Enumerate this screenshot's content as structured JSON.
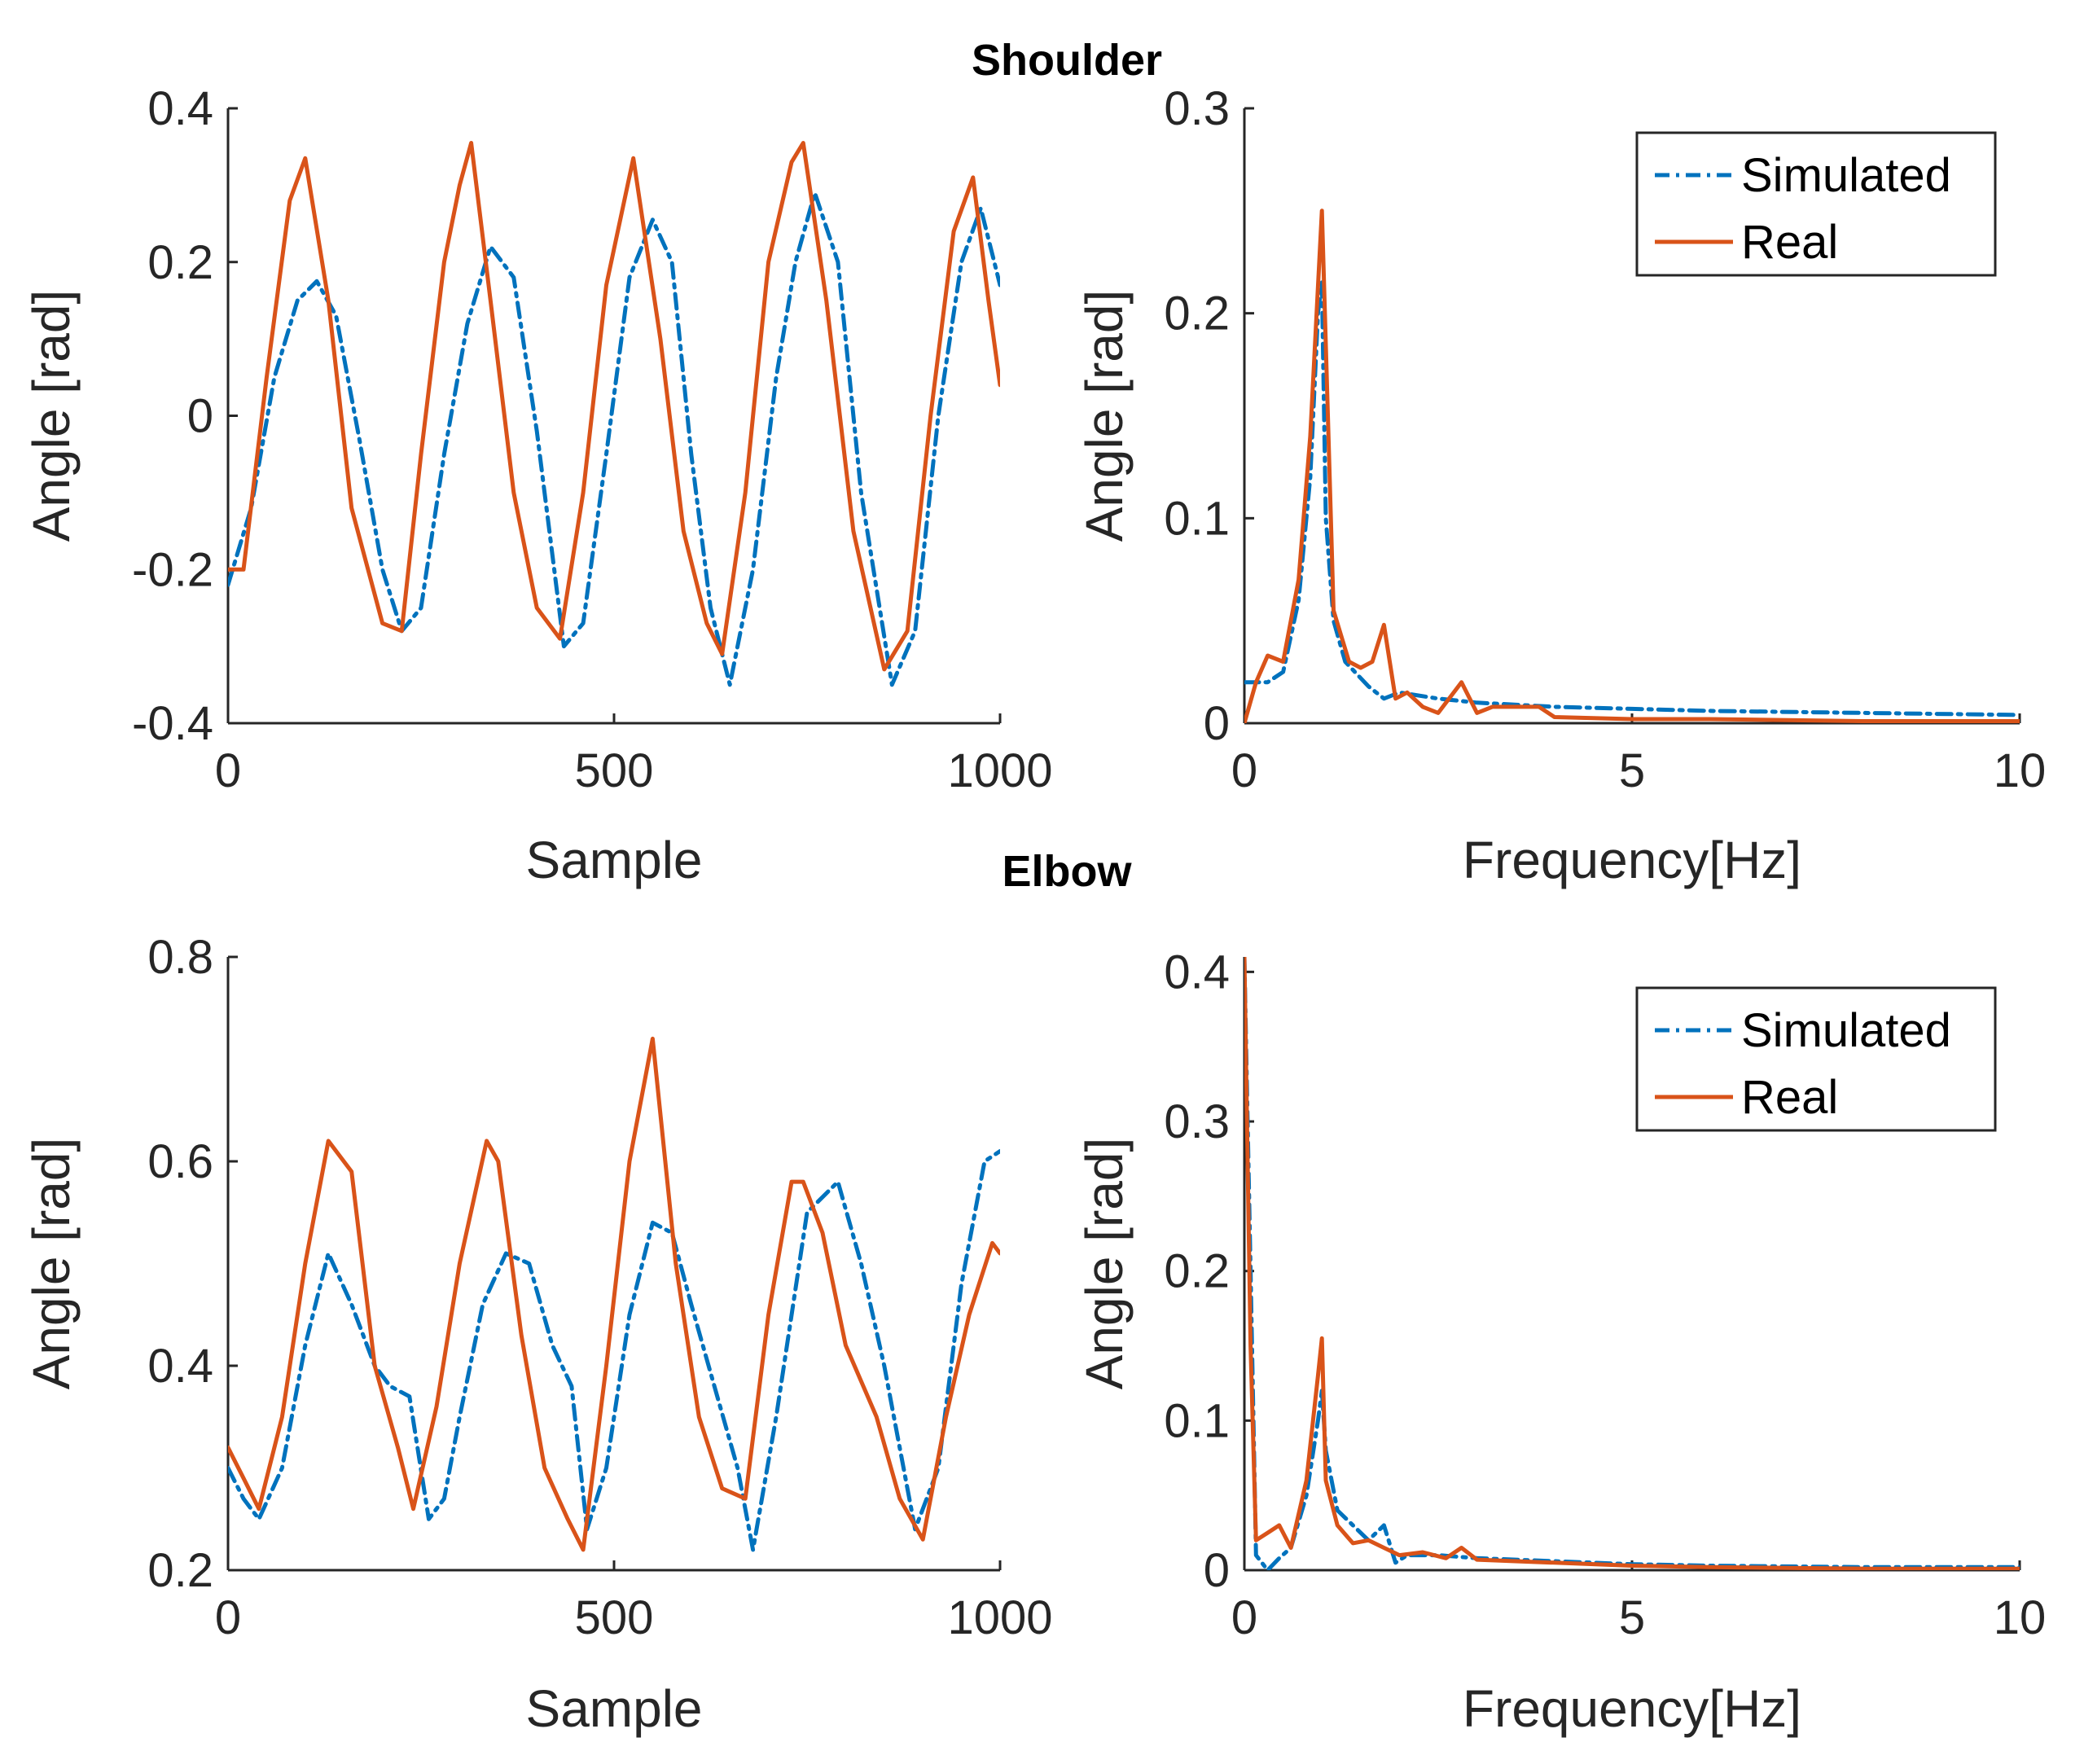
{
  "sections": [
    {
      "title": "Shoulder"
    },
    {
      "title": "Elbow"
    }
  ],
  "legend": {
    "simulated": "Simulated",
    "real": "Real"
  },
  "colors": {
    "simulated": "#0072BD",
    "real": "#D95319",
    "axis": "#262626"
  },
  "chart_data": [
    {
      "id": "shoulder-time",
      "type": "line",
      "xlabel": "Sample",
      "ylabel": "Angle [rad]",
      "xlim": [
        0,
        1000
      ],
      "ylim": [
        -0.4,
        0.4
      ],
      "xticks": [
        0,
        500,
        1000
      ],
      "yticks": [
        -0.4,
        -0.2,
        0,
        0.2,
        0.4
      ],
      "xtick_labels": [
        "0",
        "500",
        "1000"
      ],
      "ytick_labels": [
        "-0.4",
        "-0.2",
        "0",
        "0.2",
        "0.4"
      ],
      "series": [
        {
          "name": "Simulated",
          "style": "dashdot",
          "x": [
            0,
            30,
            60,
            90,
            115,
            140,
            170,
            200,
            225,
            250,
            280,
            310,
            340,
            370,
            400,
            435,
            460,
            490,
            520,
            550,
            575,
            600,
            625,
            650,
            680,
            710,
            735,
            760,
            790,
            820,
            860,
            890,
            920,
            950,
            975,
            1000
          ],
          "y": [
            -0.22,
            -0.12,
            0.05,
            0.15,
            0.175,
            0.13,
            -0.03,
            -0.2,
            -0.28,
            -0.25,
            -0.05,
            0.12,
            0.22,
            0.18,
            -0.02,
            -0.3,
            -0.27,
            -0.05,
            0.18,
            0.255,
            0.2,
            -0.05,
            -0.25,
            -0.35,
            -0.2,
            0.05,
            0.2,
            0.29,
            0.2,
            -0.1,
            -0.35,
            -0.28,
            0.0,
            0.2,
            0.27,
            0.17
          ]
        },
        {
          "name": "Real",
          "style": "solid",
          "x": [
            0,
            20,
            50,
            80,
            100,
            130,
            160,
            200,
            225,
            250,
            280,
            300,
            315,
            340,
            370,
            400,
            430,
            460,
            490,
            525,
            560,
            590,
            620,
            640,
            670,
            700,
            730,
            745,
            775,
            810,
            850,
            880,
            910,
            940,
            965,
            985,
            1000
          ],
          "y": [
            -0.2,
            -0.2,
            0.05,
            0.28,
            0.335,
            0.15,
            -0.12,
            -0.27,
            -0.28,
            -0.05,
            0.2,
            0.3,
            0.355,
            0.15,
            -0.1,
            -0.25,
            -0.29,
            -0.1,
            0.17,
            0.335,
            0.1,
            -0.15,
            -0.27,
            -0.31,
            -0.1,
            0.2,
            0.33,
            0.355,
            0.15,
            -0.15,
            -0.33,
            -0.28,
            0.0,
            0.24,
            0.31,
            0.15,
            0.04
          ]
        }
      ]
    },
    {
      "id": "shoulder-freq",
      "type": "line",
      "xlabel": "Frequency[Hz]",
      "ylabel": "Angle [rad]",
      "xlim": [
        0,
        10
      ],
      "ylim": [
        0,
        0.3
      ],
      "xticks": [
        0,
        5,
        10
      ],
      "yticks": [
        0,
        0.1,
        0.2,
        0.3
      ],
      "xtick_labels": [
        "0",
        "5",
        "10"
      ],
      "ytick_labels": [
        "0",
        "0.1",
        "0.2",
        "0.3"
      ],
      "legend_position": "top-right",
      "series": [
        {
          "name": "Simulated",
          "style": "dashdot",
          "x": [
            0,
            0.3,
            0.5,
            0.7,
            0.85,
            0.95,
            1.0,
            1.05,
            1.15,
            1.3,
            1.6,
            1.8,
            2.0,
            2.5,
            3.0,
            4.0,
            5.0,
            6.0,
            8.0,
            10.0
          ],
          "y": [
            0.02,
            0.02,
            0.025,
            0.06,
            0.12,
            0.2,
            0.215,
            0.1,
            0.05,
            0.03,
            0.018,
            0.012,
            0.015,
            0.012,
            0.01,
            0.008,
            0.007,
            0.006,
            0.005,
            0.004
          ]
        },
        {
          "name": "Real",
          "style": "solid",
          "x": [
            0,
            0.15,
            0.3,
            0.5,
            0.7,
            0.85,
            1.0,
            1.15,
            1.35,
            1.5,
            1.65,
            1.8,
            1.95,
            2.1,
            2.3,
            2.5,
            2.8,
            3.0,
            3.2,
            3.5,
            3.8,
            4.0,
            5.0,
            6.0,
            8.0,
            10.0
          ],
          "y": [
            0.0,
            0.02,
            0.033,
            0.03,
            0.07,
            0.14,
            0.25,
            0.055,
            0.03,
            0.027,
            0.03,
            0.048,
            0.012,
            0.015,
            0.008,
            0.005,
            0.02,
            0.005,
            0.008,
            0.008,
            0.008,
            0.003,
            0.002,
            0.002,
            0.001,
            0.001
          ]
        }
      ]
    },
    {
      "id": "elbow-time",
      "type": "line",
      "xlabel": "Sample",
      "ylabel": "Angle [rad]",
      "xlim": [
        0,
        1000
      ],
      "ylim": [
        0.2,
        0.8
      ],
      "xticks": [
        0,
        500,
        1000
      ],
      "yticks": [
        0.2,
        0.4,
        0.6,
        0.8
      ],
      "xtick_labels": [
        "0",
        "500",
        "1000"
      ],
      "ytick_labels": [
        "0.2",
        "0.4",
        "0.6",
        "0.8"
      ],
      "series": [
        {
          "name": "Simulated",
          "style": "dashdot",
          "x": [
            0,
            20,
            40,
            70,
            100,
            130,
            160,
            190,
            210,
            235,
            260,
            280,
            300,
            330,
            360,
            390,
            420,
            445,
            465,
            490,
            520,
            550,
            575,
            600,
            630,
            660,
            680,
            710,
            750,
            790,
            820,
            850,
            890,
            920,
            950,
            980,
            1000
          ],
          "y": [
            0.3,
            0.27,
            0.25,
            0.3,
            0.42,
            0.51,
            0.46,
            0.4,
            0.38,
            0.37,
            0.25,
            0.27,
            0.35,
            0.46,
            0.51,
            0.5,
            0.42,
            0.38,
            0.24,
            0.3,
            0.45,
            0.54,
            0.53,
            0.46,
            0.38,
            0.3,
            0.22,
            0.35,
            0.55,
            0.58,
            0.5,
            0.4,
            0.24,
            0.3,
            0.48,
            0.6,
            0.61
          ]
        },
        {
          "name": "Real",
          "style": "solid",
          "x": [
            0,
            20,
            40,
            70,
            100,
            130,
            160,
            190,
            220,
            240,
            270,
            300,
            335,
            350,
            380,
            410,
            440,
            460,
            490,
            520,
            550,
            580,
            610,
            640,
            670,
            700,
            730,
            745,
            770,
            800,
            840,
            870,
            900,
            930,
            960,
            990,
            1000
          ],
          "y": [
            0.32,
            0.29,
            0.26,
            0.35,
            0.5,
            0.62,
            0.59,
            0.4,
            0.32,
            0.26,
            0.36,
            0.5,
            0.62,
            0.6,
            0.43,
            0.3,
            0.25,
            0.22,
            0.4,
            0.6,
            0.72,
            0.5,
            0.35,
            0.28,
            0.27,
            0.45,
            0.58,
            0.58,
            0.53,
            0.42,
            0.35,
            0.27,
            0.23,
            0.35,
            0.45,
            0.52,
            0.51
          ]
        }
      ]
    },
    {
      "id": "elbow-freq",
      "type": "line",
      "xlabel": "Frequency[Hz]",
      "ylabel": "Angle [rad]",
      "xlim": [
        0,
        10
      ],
      "ylim": [
        0,
        0.41
      ],
      "xticks": [
        0,
        5,
        10
      ],
      "yticks": [
        0,
        0.1,
        0.2,
        0.3,
        0.4
      ],
      "xtick_labels": [
        "0",
        "5",
        "10"
      ],
      "ytick_labels": [
        "0",
        "0.1",
        "0.2",
        "0.3",
        "0.4"
      ],
      "legend_position": "top-right",
      "series": [
        {
          "name": "Simulated",
          "style": "dashdot",
          "x": [
            0,
            0.08,
            0.15,
            0.3,
            0.45,
            0.6,
            0.8,
            0.95,
            1.0,
            1.05,
            1.2,
            1.4,
            1.6,
            1.8,
            1.95,
            2.1,
            2.5,
            3.0,
            4.0,
            5.0,
            6.0,
            8.0,
            10.0
          ],
          "y": [
            0.41,
            0.2,
            0.01,
            0.0,
            0.008,
            0.015,
            0.05,
            0.1,
            0.12,
            0.08,
            0.04,
            0.03,
            0.02,
            0.03,
            0.005,
            0.01,
            0.01,
            0.008,
            0.006,
            0.004,
            0.003,
            0.002,
            0.002
          ]
        },
        {
          "name": "Real",
          "style": "solid",
          "x": [
            0,
            0.08,
            0.15,
            0.3,
            0.45,
            0.6,
            0.8,
            0.95,
            1.0,
            1.05,
            1.2,
            1.4,
            1.6,
            1.8,
            2.0,
            2.3,
            2.6,
            2.8,
            3.0,
            3.5,
            4.0,
            5.0,
            6.0,
            8.0,
            10.0
          ],
          "y": [
            0.41,
            0.15,
            0.02,
            0.025,
            0.03,
            0.015,
            0.06,
            0.13,
            0.155,
            0.06,
            0.03,
            0.018,
            0.02,
            0.015,
            0.01,
            0.012,
            0.008,
            0.015,
            0.007,
            0.006,
            0.005,
            0.003,
            0.002,
            0.001,
            0.001
          ]
        }
      ]
    }
  ]
}
